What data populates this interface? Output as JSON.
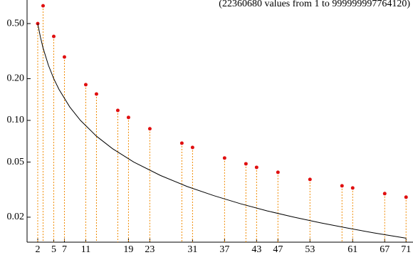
{
  "chart_data": {
    "type": "scatter",
    "title": "(22360680 values from  1 to  999999997764120)",
    "title_color": "#cc1111",
    "log_y": true,
    "xlim": [
      0,
      72.3
    ],
    "ylim": [
      0.0132,
      0.74
    ],
    "xticks": [
      2,
      5,
      7,
      11,
      19,
      23,
      31,
      37,
      43,
      47,
      53,
      61,
      67,
      71
    ],
    "yticks": [
      {
        "value": 0.5,
        "label": "0.50"
      },
      {
        "value": 0.2,
        "label": "0.20"
      },
      {
        "value": 0.1,
        "label": "0.10"
      },
      0.05,
      0.02
    ],
    "series": [
      {
        "type": "scatter",
        "color": "#e01010",
        "stem_color": "#f08a00",
        "x": [
          2,
          3,
          5,
          7,
          11,
          13,
          17,
          19,
          23,
          29,
          31,
          37,
          41,
          43,
          47,
          53,
          59,
          61,
          67,
          71
        ],
        "values": [
          0.5,
          0.672,
          0.404,
          0.287,
          0.181,
          0.155,
          0.118,
          0.105,
          0.087,
          0.0685,
          0.0638,
          0.0535,
          0.0486,
          0.0458,
          0.0422,
          0.0375,
          0.0337,
          0.0325,
          0.0296,
          0.0279
        ]
      },
      {
        "type": "line",
        "color": "#000000",
        "x": [
          2,
          2.5,
          3,
          4,
          5,
          6,
          8,
          10,
          13,
          16,
          20,
          25,
          30,
          35,
          40,
          45,
          50,
          55,
          60,
          65,
          71
        ],
        "values": [
          0.5,
          0.4,
          0.333,
          0.25,
          0.2,
          0.167,
          0.125,
          0.1,
          0.0769,
          0.0625,
          0.05,
          0.04,
          0.0333,
          0.0286,
          0.025,
          0.0222,
          0.02,
          0.0182,
          0.0167,
          0.0154,
          0.0141
        ]
      }
    ]
  }
}
